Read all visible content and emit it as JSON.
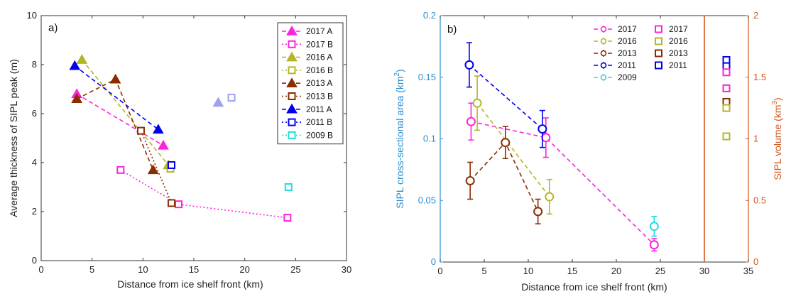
{
  "chart_data": [
    {
      "type": "scatter",
      "panel_label": "a)",
      "xlabel": "Distance from ice shelf front (km)",
      "ylabel": "Average thickness of SIPL peak (m)",
      "xlim": [
        0,
        30
      ],
      "ylim": [
        0,
        10
      ],
      "xticks": [
        "0",
        "5",
        "10",
        "15",
        "20",
        "25",
        "30"
      ],
      "yticks": [
        "0",
        "2",
        "4",
        "6",
        "8",
        "10"
      ],
      "legend_position": "top-right",
      "series": [
        {
          "name": "2017 A",
          "color": "#ff22dd",
          "marker": "triangle",
          "line": "dashed",
          "x": [
            3.5,
            12.0
          ],
          "y": [
            6.8,
            4.7
          ]
        },
        {
          "name": "2017 B",
          "color": "#ff22dd",
          "marker": "square",
          "line": "dotted",
          "x": [
            7.8,
            13.5,
            24.2
          ],
          "y": [
            3.7,
            2.3,
            1.75
          ]
        },
        {
          "name": "2016 A",
          "color": "#b5b52a",
          "marker": "triangle",
          "line": "dashed",
          "x": [
            4.0,
            12.5
          ],
          "y": [
            8.2,
            3.9
          ]
        },
        {
          "name": "2016 B",
          "color": "#b5b52a",
          "marker": "square",
          "line": "dotted",
          "x": [
            12.7
          ],
          "y": [
            3.75
          ]
        },
        {
          "name": "2013 A",
          "color": "#8b2d00",
          "marker": "triangle",
          "line": "dashed",
          "x": [
            3.5,
            7.3,
            11.0
          ],
          "y": [
            6.6,
            7.4,
            3.7
          ]
        },
        {
          "name": "2013 B",
          "color": "#8b2d00",
          "marker": "square",
          "line": "dotted",
          "x": [
            9.8,
            12.8
          ],
          "y": [
            5.3,
            2.35
          ]
        },
        {
          "name": "2011 A",
          "color": "#0000ee",
          "marker": "triangle",
          "line": "dashed",
          "x": [
            3.3,
            11.5
          ],
          "y": [
            7.95,
            5.35
          ]
        },
        {
          "name": "2011 B",
          "color": "#0000ee",
          "marker": "square",
          "line": "dotted",
          "x": [
            12.8
          ],
          "y": [
            3.9
          ]
        },
        {
          "name": "2009 B",
          "color": "#22dddd",
          "marker": "square",
          "line": "dotted",
          "x": [
            24.3
          ],
          "y": [
            3.0
          ]
        }
      ],
      "faded_points": [
        {
          "color": "#a0a0ee",
          "marker": "triangle",
          "x": 17.4,
          "y": 6.45
        },
        {
          "color": "#a0a0ee",
          "marker": "square",
          "x": 18.7,
          "y": 6.65
        }
      ]
    },
    {
      "type": "scatter",
      "panel_label": "b)",
      "xlabel": "Distance from ice shelf front (km)",
      "ylabel_left": "SIPL cross-sectional area (km",
      "ylabel_left_sup": "2",
      "ylabel_right": "SIPL volume (km",
      "ylabel_right_sup": "3",
      "xlim": [
        0,
        35
      ],
      "ylim_left": [
        0,
        0.2
      ],
      "ylim_right": [
        0,
        2
      ],
      "xticks": [
        "0",
        "5",
        "10",
        "15",
        "20",
        "25",
        "30",
        "35"
      ],
      "yticks_left": [
        "0",
        "0.05",
        "0.1",
        "0.15",
        "0.2"
      ],
      "yticks_right": [
        "0",
        "0.5",
        "1",
        "1.5",
        "2"
      ],
      "left_axis_color": "#2a8fd0",
      "right_axis_color": "#d2571c",
      "vertical_line_x": 30,
      "series": [
        {
          "name": "2017",
          "color": "#ff22dd",
          "x": [
            3.5,
            12.0,
            24.3
          ],
          "y": [
            0.114,
            0.101,
            0.014
          ],
          "err": [
            0.015,
            0.016,
            0.005
          ]
        },
        {
          "name": "2016",
          "color": "#b5b52a",
          "x": [
            4.2,
            12.4
          ],
          "y": [
            0.129,
            0.053
          ],
          "err": [
            0.022,
            0.014
          ]
        },
        {
          "name": "2013",
          "color": "#8b2d00",
          "x": [
            3.4,
            7.4,
            11.1
          ],
          "y": [
            0.066,
            0.097,
            0.041
          ],
          "err": [
            0.015,
            0.013,
            0.01
          ]
        },
        {
          "name": "2011",
          "color": "#0000ee",
          "x": [
            3.3,
            11.6
          ],
          "y": [
            0.16,
            0.108
          ],
          "err": [
            0.018,
            0.015
          ]
        },
        {
          "name": "2009",
          "color": "#22dddd",
          "x": [
            24.3
          ],
          "y": [
            0.029
          ],
          "err": [
            0.008
          ]
        }
      ],
      "volume_legend": [
        "2017",
        "2016",
        "2013",
        "2011"
      ],
      "volumes": [
        {
          "name": "2011",
          "color": "#0000ee",
          "x": 32.5,
          "values": [
            1.64,
            1.59
          ]
        },
        {
          "name": "2017",
          "color": "#ff22dd",
          "x": 32.5,
          "values": [
            1.54,
            1.41
          ]
        },
        {
          "name": "2013",
          "color": "#8b2d00",
          "x": 32.5,
          "values": [
            1.3
          ]
        },
        {
          "name": "2016",
          "color": "#b5b52a",
          "x": 32.5,
          "values": [
            1.25,
            1.02
          ]
        }
      ]
    }
  ]
}
